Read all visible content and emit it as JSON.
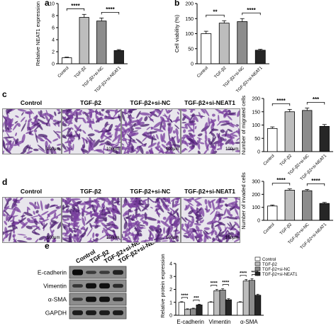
{
  "panel_letters": [
    "a",
    "b",
    "c",
    "d",
    "e"
  ],
  "micrographs": {
    "conditions": [
      "Control",
      "TGF-β2",
      "TGF-β2+si-NC",
      "TGF-β2+si-NEAT1"
    ],
    "scale_label": "100μm",
    "colors": {
      "bg": "#e8e6ec",
      "cell": "#7a3f9f",
      "dark": "#4a1e6e"
    },
    "density_c": [
      0.35,
      0.6,
      0.6,
      0.45
    ],
    "density_d": [
      0.35,
      0.85,
      0.8,
      0.55
    ]
  },
  "western": {
    "lanes": [
      "Control",
      "TGF-β2",
      "TGF-β2+si-NC",
      "TGF-β2+si-NEAT1"
    ],
    "proteins": [
      "E-cadherin",
      "Vimentin",
      "α-SMA",
      "GAPDH"
    ],
    "band_intensity": [
      [
        1.0,
        0.55,
        0.55,
        0.8
      ],
      [
        0.6,
        0.95,
        0.95,
        0.7
      ],
      [
        0.55,
        0.95,
        0.95,
        0.7
      ],
      [
        0.85,
        0.85,
        0.85,
        0.85
      ]
    ]
  },
  "chart_data": [
    {
      "panel": "a",
      "type": "bar",
      "ylabel": "Relative NEAT1 expression",
      "ylim": [
        0,
        10
      ],
      "yticks": [
        0,
        2,
        4,
        6,
        8,
        10
      ],
      "categories": [
        "Control",
        "TGF-β2",
        "TGF-β2+si-NC",
        "TGF-β2+si-NEAT1"
      ],
      "values": [
        1.0,
        7.7,
        7.1,
        2.2
      ],
      "errors": [
        0.1,
        0.5,
        0.5,
        0.15
      ],
      "colors": [
        "#ffffff",
        "#bdbdbd",
        "#8c8c8c",
        "#262626"
      ],
      "annotations": [
        {
          "from": 0,
          "to": 1,
          "label": "****"
        },
        {
          "from": 2,
          "to": 3,
          "label": "****"
        }
      ]
    },
    {
      "panel": "b",
      "type": "bar",
      "ylabel": "Cell viability (%)",
      "ylim": [
        0,
        200
      ],
      "yticks": [
        0,
        50,
        100,
        150,
        200
      ],
      "categories": [
        "Control",
        "TGF-β2",
        "TGF-β2+si-NC",
        "TGF-β2+si-NEAT1"
      ],
      "values": [
        100,
        135,
        140,
        45
      ],
      "errors": [
        8,
        8,
        10,
        3
      ],
      "colors": [
        "#ffffff",
        "#bdbdbd",
        "#8c8c8c",
        "#262626"
      ],
      "annotations": [
        {
          "from": 0,
          "to": 1,
          "label": "**"
        },
        {
          "from": 2,
          "to": 3,
          "label": "****"
        }
      ]
    },
    {
      "panel": "c",
      "type": "bar",
      "ylabel": "Number of migrated cells",
      "ylim": [
        0,
        200
      ],
      "yticks": [
        0,
        50,
        100,
        150,
        200
      ],
      "categories": [
        "Control",
        "TGF-β2",
        "TGF-β2+si-NC",
        "TGF-β2+si-NEAT1"
      ],
      "values": [
        87,
        150,
        155,
        95
      ],
      "errors": [
        6,
        9,
        9,
        7
      ],
      "colors": [
        "#ffffff",
        "#bdbdbd",
        "#8c8c8c",
        "#262626"
      ],
      "annotations": [
        {
          "from": 0,
          "to": 1,
          "label": "****"
        },
        {
          "from": 2,
          "to": 3,
          "label": "***"
        }
      ]
    },
    {
      "panel": "d",
      "type": "bar",
      "ylabel": "Number of invaded cells",
      "ylim": [
        0,
        300
      ],
      "yticks": [
        0,
        100,
        200,
        300
      ],
      "categories": [
        "Control",
        "TGF-β2",
        "TGF-β2+si-NC",
        "TGF-β2+si-NEAT1"
      ],
      "values": [
        110,
        232,
        228,
        130
      ],
      "errors": [
        8,
        10,
        10,
        8
      ],
      "colors": [
        "#ffffff",
        "#bdbdbd",
        "#8c8c8c",
        "#262626"
      ],
      "annotations": [
        {
          "from": 0,
          "to": 1,
          "label": "****"
        },
        {
          "from": 2,
          "to": 3,
          "label": "****"
        }
      ]
    },
    {
      "panel": "e",
      "type": "bar",
      "ylabel": "Relative protein expression",
      "ylim": [
        0,
        4
      ],
      "yticks": [
        0,
        1,
        2,
        3,
        4
      ],
      "categories": [
        "E-cadherin",
        "Vimentin",
        "α-SMA"
      ],
      "series": [
        {
          "name": "Control",
          "values": [
            1.0,
            1.0,
            1.0
          ],
          "errors": [
            0.05,
            0.05,
            0.05
          ],
          "color": "#ffffff"
        },
        {
          "name": "TGF-β2",
          "values": [
            0.45,
            1.9,
            2.65
          ],
          "errors": [
            0.05,
            0.1,
            0.12
          ],
          "color": "#bdbdbd"
        },
        {
          "name": "TGF-β2+si-NC",
          "values": [
            0.5,
            1.95,
            2.7
          ],
          "errors": [
            0.05,
            0.1,
            0.12
          ],
          "color": "#8c8c8c"
        },
        {
          "name": "TGF-β2+si-NEAT1",
          "values": [
            0.8,
            1.2,
            1.55
          ],
          "errors": [
            0.05,
            0.08,
            0.08
          ],
          "color": "#262626"
        }
      ],
      "legend": "top-right",
      "annotations": [
        {
          "group": 0,
          "from": 0,
          "to": 1,
          "label": "****"
        },
        {
          "group": 0,
          "from": 2,
          "to": 3,
          "label": "***"
        },
        {
          "group": 1,
          "from": 0,
          "to": 1,
          "label": "****"
        },
        {
          "group": 1,
          "from": 2,
          "to": 3,
          "label": "****"
        },
        {
          "group": 2,
          "from": 0,
          "to": 1,
          "label": "****"
        },
        {
          "group": 2,
          "from": 2,
          "to": 3,
          "label": "****"
        }
      ]
    }
  ]
}
